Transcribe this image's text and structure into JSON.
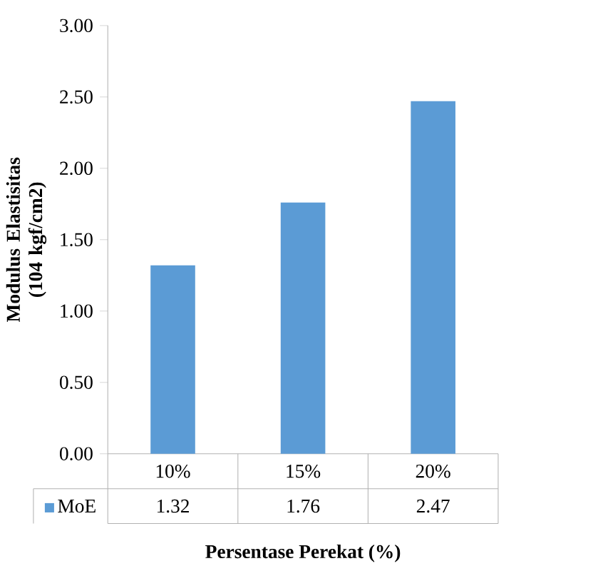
{
  "chart_data": {
    "type": "bar",
    "categories": [
      "10%",
      "15%",
      "20%"
    ],
    "series": [
      {
        "name": "MoE",
        "color": "#5b9bd5",
        "values": [
          1.32,
          1.76,
          2.47
        ]
      }
    ],
    "xlabel": "Persentase Perekat (%)",
    "ylabel": "Modulus Elastisitas (104 kgf/cm2)",
    "ylim": [
      0,
      3
    ],
    "yticks": [
      {
        "value": 0,
        "label": "0.00"
      },
      {
        "value": 0.5,
        "label": "0.50"
      },
      {
        "value": 1,
        "label": "1.00"
      },
      {
        "value": 1.5,
        "label": "1.50"
      },
      {
        "value": 2,
        "label": "2.00"
      },
      {
        "value": 2.5,
        "label": "2.50"
      },
      {
        "value": 3,
        "label": "3.00"
      }
    ],
    "data_labels": true,
    "legend": "bottom",
    "grid": false
  }
}
